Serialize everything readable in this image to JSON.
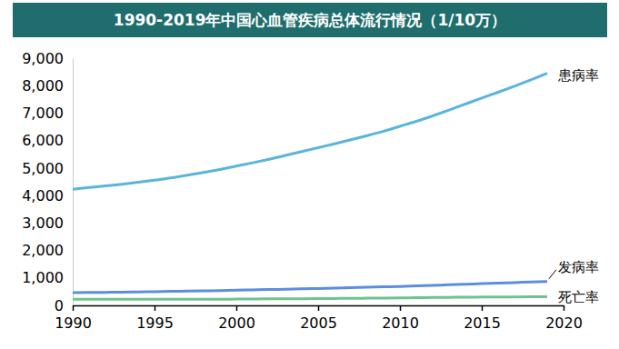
{
  "chart_data": {
    "type": "line",
    "title": "1990-2019年中国心血管疾病总体流行情况（1/10万）",
    "x": [
      1990,
      1991,
      1992,
      1993,
      1994,
      1995,
      1996,
      1997,
      1998,
      1999,
      2000,
      2001,
      2002,
      2003,
      2004,
      2005,
      2006,
      2007,
      2008,
      2009,
      2010,
      2011,
      2012,
      2013,
      2014,
      2015,
      2016,
      2017,
      2018,
      2019
    ],
    "series": [
      {
        "name": "患病率",
        "color": "#5ab4de",
        "values": [
          4230,
          4290,
          4350,
          4410,
          4480,
          4560,
          4640,
          4740,
          4840,
          4950,
          5070,
          5190,
          5320,
          5460,
          5600,
          5740,
          5880,
          6030,
          6180,
          6340,
          6520,
          6700,
          6900,
          7110,
          7330,
          7550,
          7760,
          7980,
          8210,
          8450
        ]
      },
      {
        "name": "发病率",
        "color": "#5b8ee0",
        "values": [
          460,
          470,
          475,
          480,
          490,
          500,
          510,
          520,
          530,
          540,
          555,
          565,
          575,
          590,
          600,
          615,
          630,
          645,
          660,
          675,
          690,
          710,
          730,
          750,
          770,
          790,
          810,
          830,
          850,
          870
        ]
      },
      {
        "name": "死亡率",
        "color": "#6dc28f",
        "values": [
          220,
          222,
          224,
          225,
          226,
          225,
          224,
          222,
          222,
          224,
          228,
          232,
          236,
          240,
          244,
          248,
          252,
          256,
          262,
          268,
          274,
          280,
          286,
          292,
          298,
          302,
          306,
          310,
          314,
          318
        ]
      }
    ],
    "xlim": [
      1990,
      2020
    ],
    "xticks": [
      1990,
      1995,
      2000,
      2005,
      2010,
      2015,
      2020
    ],
    "ylim": [
      0,
      9000
    ],
    "yticks": [
      0,
      {
        "value": 1000,
        "label": "1,000"
      },
      {
        "value": 2000,
        "label": "2,000"
      },
      {
        "value": 3000,
        "label": "3,000"
      },
      {
        "value": 4000,
        "label": "4,000"
      },
      {
        "value": 5000,
        "label": "5,000"
      },
      {
        "value": 6000,
        "label": "6,000"
      },
      {
        "value": 7000,
        "label": "7,000"
      },
      {
        "value": 8000,
        "label": "8,000"
      },
      {
        "value": 9000,
        "label": "9,000"
      }
    ],
    "grid": false
  }
}
